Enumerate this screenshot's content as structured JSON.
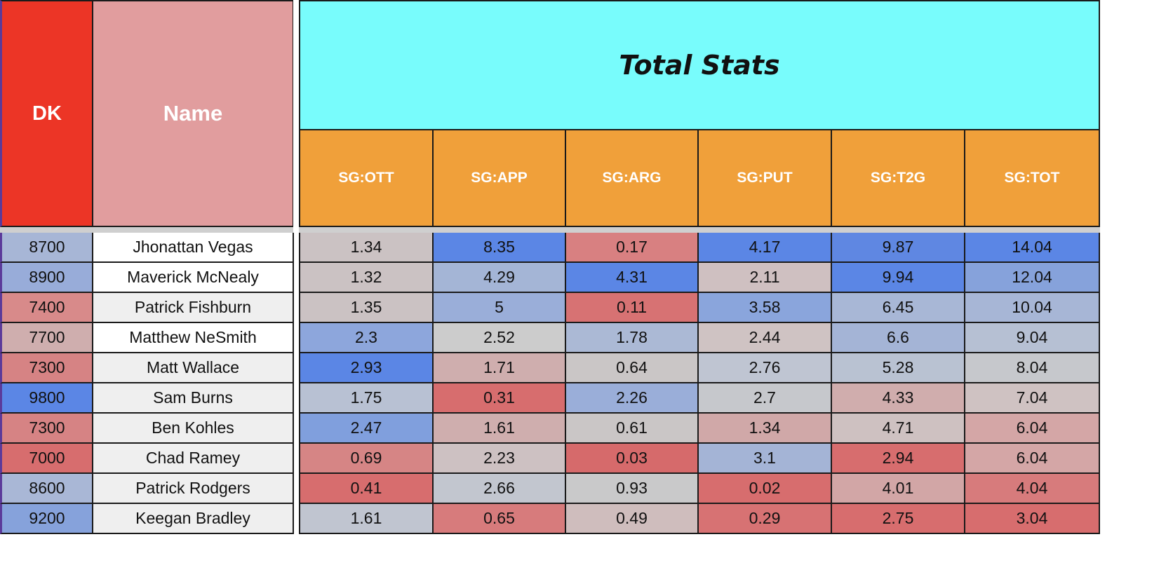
{
  "header": {
    "dk_label": "DK",
    "name_label": "Name",
    "group_title": "Total Stats",
    "stat_columns": [
      "SG:OTT",
      "SG:APP",
      "SG:ARG",
      "SG:PUT",
      "SG:T2G",
      "SG:TOT"
    ]
  },
  "colors": {
    "dk_header": "#ec3526",
    "name_header": "#e19d9e",
    "title_header": "#78fcfc",
    "stat_header": "#f0a03a",
    "heat_high": "#5b86e5",
    "heat_mid": "#cfcfcf",
    "heat_low": "#d96b6b"
  },
  "rows": [
    {
      "dk": "8700",
      "name": "Jhonattan Vegas",
      "stats": [
        "1.34",
        "8.35",
        "0.17",
        "4.17",
        "9.87",
        "14.04"
      ],
      "dk_color": "#a7b6d6",
      "name_color": "#ffffff",
      "stat_colors": [
        "#cbc2c3",
        "#5b86e5",
        "#d88081",
        "#5b86e5",
        "#5f87e2",
        "#5b86e5"
      ]
    },
    {
      "dk": "8900",
      "name": "Maverick McNealy",
      "stats": [
        "1.32",
        "4.29",
        "4.31",
        "2.11",
        "9.94",
        "12.04"
      ],
      "dk_color": "#98acd9",
      "name_color": "#ffffff",
      "stat_colors": [
        "#cbc2c3",
        "#a4b5d6",
        "#5b86e5",
        "#cfc0c1",
        "#5b86e5",
        "#86a2db"
      ]
    },
    {
      "dk": "7400",
      "name": "Patrick Fishburn",
      "stats": [
        "1.35",
        "5",
        "0.11",
        "3.58",
        "6.45",
        "10.04"
      ],
      "dk_color": "#d88a8a",
      "name_color": "#efefef",
      "stat_colors": [
        "#cbc2c3",
        "#9aaed9",
        "#d77273",
        "#8aa5dc",
        "#a8b7d6",
        "#a7b6d6"
      ]
    },
    {
      "dk": "7700",
      "name": "Matthew NeSmith",
      "stats": [
        "2.3",
        "2.52",
        "1.78",
        "2.44",
        "6.6",
        "9.04"
      ],
      "dk_color": "#cfaeae",
      "name_color": "#ffffff",
      "stat_colors": [
        "#8da6dc",
        "#cccccc",
        "#abb9d5",
        "#cfc3c3",
        "#a4b4d6",
        "#b6c0d3"
      ]
    },
    {
      "dk": "7300",
      "name": "Matt Wallace",
      "stats": [
        "2.93",
        "1.71",
        "0.64",
        "2.76",
        "5.28",
        "8.04"
      ],
      "dk_color": "#d68384",
      "name_color": "#efefef",
      "stat_colors": [
        "#5b86e5",
        "#cfaeae",
        "#cac6c6",
        "#bfc5d2",
        "#b9c2d2",
        "#c6c8cc"
      ]
    },
    {
      "dk": "9800",
      "name": "Sam Burns",
      "stats": [
        "1.75",
        "0.31",
        "2.26",
        "2.7",
        "4.33",
        "7.04"
      ],
      "dk_color": "#5b86e5",
      "name_color": "#efefef",
      "stat_colors": [
        "#b8c1d3",
        "#d76d6e",
        "#9aaed9",
        "#c6c8cc",
        "#d0adad",
        "#cfc2c2"
      ]
    },
    {
      "dk": "7300",
      "name": "Ben Kohles",
      "stats": [
        "2.47",
        "1.61",
        "0.61",
        "1.34",
        "4.71",
        "6.04"
      ],
      "dk_color": "#d68384",
      "name_color": "#efefef",
      "stat_colors": [
        "#809fdd",
        "#cfaeae",
        "#cac6c6",
        "#d0a8a8",
        "#cec1c1",
        "#d4a6a6"
      ]
    },
    {
      "dk": "7000",
      "name": "Chad Ramey",
      "stats": [
        "0.69",
        "2.23",
        "0.03",
        "3.1",
        "2.94",
        "6.04"
      ],
      "dk_color": "#d76d6e",
      "name_color": "#efefef",
      "stat_colors": [
        "#d68585",
        "#cdc1c2",
        "#d66a6b",
        "#a4b4d6",
        "#d76d6e",
        "#d4a6a6"
      ]
    },
    {
      "dk": "8600",
      "name": "Patrick Rodgers",
      "stats": [
        "0.41",
        "2.66",
        "0.93",
        "0.02",
        "4.01",
        "4.04"
      ],
      "dk_color": "#a9b7d6",
      "name_color": "#efefef",
      "stat_colors": [
        "#d76d6e",
        "#c2c6cf",
        "#c9c9ca",
        "#d76d6e",
        "#d2a6a6",
        "#d77b7c"
      ]
    },
    {
      "dk": "9200",
      "name": "Keegan Bradley",
      "stats": [
        "1.61",
        "0.65",
        "0.49",
        "0.29",
        "2.75",
        "3.04"
      ],
      "dk_color": "#86a2db",
      "name_color": "#efefef",
      "stat_colors": [
        "#c0c5d0",
        "#d77b7c",
        "#cfbdbd",
        "#d77273",
        "#d76d6e",
        "#d76d6e"
      ]
    }
  ]
}
